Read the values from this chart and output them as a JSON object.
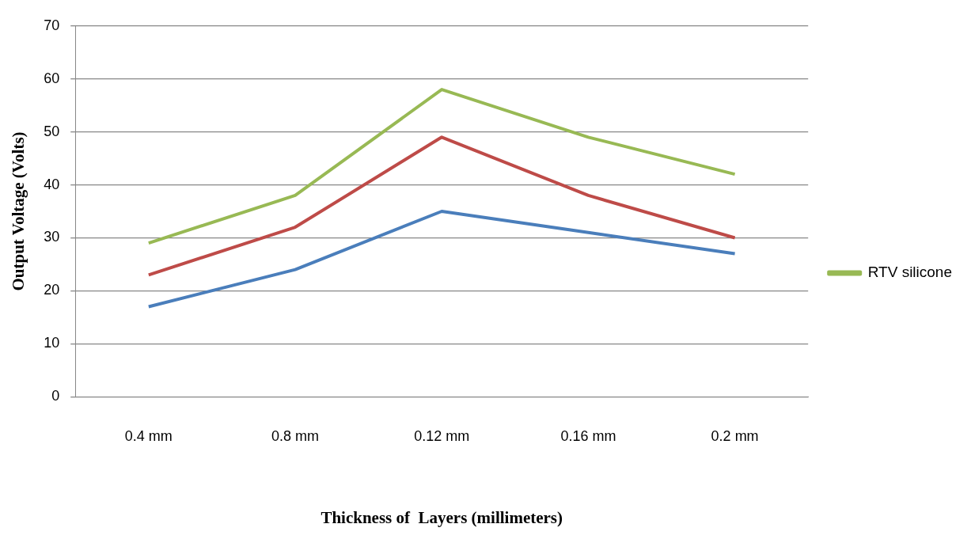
{
  "chart_data": {
    "type": "line",
    "xlabel": "Thickness of  Layers (millimeters)",
    "ylabel": "Output Voltage (Volts)",
    "categories": [
      "0.4 mm",
      "0.8 mm",
      "0.12 mm",
      "0.16 mm",
      "0.2 mm"
    ],
    "series": [
      {
        "color": "#4a7ebb",
        "values": [
          17,
          24,
          35,
          31,
          27
        ]
      },
      {
        "color": "#be4b48",
        "values": [
          23,
          32,
          49,
          38,
          30
        ]
      },
      {
        "name": "RTV silicone",
        "color": "#98b954",
        "values": [
          29,
          38,
          58,
          49,
          42
        ]
      }
    ],
    "ylim": [
      0,
      70
    ],
    "yticks": [
      0,
      10,
      20,
      30,
      40,
      50,
      60,
      70
    ],
    "grid": "y",
    "legend": "right",
    "marker": "none",
    "line_style": "solid"
  }
}
